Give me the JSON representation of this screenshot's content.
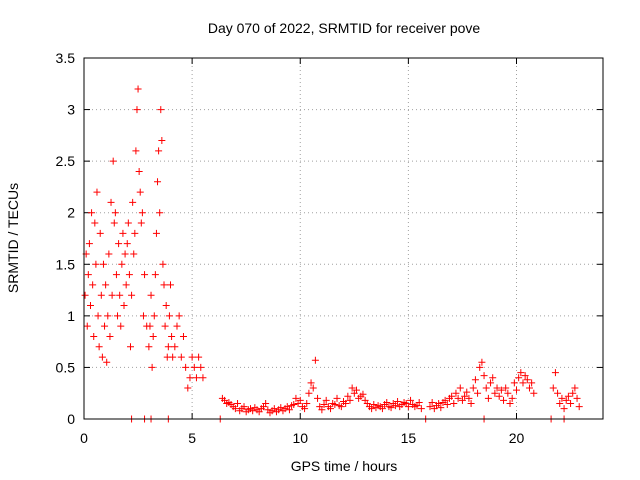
{
  "chart_data": {
    "type": "scatter",
    "title": "Day 070 of 2022, SRMTID for receiver pove",
    "xlabel": "GPS time / hours",
    "ylabel": "SRMTID / TECUs",
    "xlim": [
      0,
      24
    ],
    "ylim": [
      0,
      3.5
    ],
    "xticks": [
      0,
      5,
      10,
      15,
      20
    ],
    "xtick_labels": [
      "0",
      "5",
      "10",
      "15",
      "20"
    ],
    "yticks": [
      0,
      0.5,
      1,
      1.5,
      2,
      2.5,
      3,
      3.5
    ],
    "ytick_labels": [
      "0",
      "0.5",
      "1",
      "1.5",
      "2",
      "2.5",
      "3",
      "3.5"
    ],
    "grid": true,
    "marker": "plus",
    "series": [
      {
        "color": "#ff0000",
        "points": [
          [
            0.05,
            1.2
          ],
          [
            0.1,
            1.6
          ],
          [
            0.15,
            0.9
          ],
          [
            0.2,
            1.4
          ],
          [
            0.25,
            1.7
          ],
          [
            0.3,
            1.1
          ],
          [
            0.35,
            2.0
          ],
          [
            0.4,
            1.3
          ],
          [
            0.45,
            0.8
          ],
          [
            0.5,
            1.9
          ],
          [
            0.55,
            1.5
          ],
          [
            0.6,
            2.2
          ],
          [
            0.65,
            1.0
          ],
          [
            0.7,
            0.7
          ],
          [
            0.75,
            1.8
          ],
          [
            0.8,
            1.2
          ],
          [
            0.85,
            0.6
          ],
          [
            0.9,
            1.5
          ],
          [
            0.95,
            0.9
          ],
          [
            1.0,
            1.3
          ],
          [
            1.05,
            0.55
          ],
          [
            1.1,
            1.0
          ],
          [
            1.15,
            1.6
          ],
          [
            1.2,
            0.8
          ],
          [
            1.25,
            2.1
          ],
          [
            1.3,
            1.2
          ],
          [
            1.35,
            2.5
          ],
          [
            1.4,
            1.9
          ],
          [
            1.45,
            2.0
          ],
          [
            1.5,
            1.4
          ],
          [
            1.55,
            1.0
          ],
          [
            1.6,
            1.7
          ],
          [
            1.65,
            1.2
          ],
          [
            1.7,
            0.9
          ],
          [
            1.75,
            1.5
          ],
          [
            1.8,
            1.8
          ],
          [
            1.85,
            1.1
          ],
          [
            1.9,
            1.6
          ],
          [
            1.95,
            1.3
          ],
          [
            2.0,
            1.7
          ],
          [
            2.05,
            1.9
          ],
          [
            2.1,
            1.4
          ],
          [
            2.15,
            0.7
          ],
          [
            2.2,
            1.2
          ],
          [
            2.25,
            2.1
          ],
          [
            2.3,
            1.6
          ],
          [
            2.35,
            1.8
          ],
          [
            2.4,
            2.6
          ],
          [
            2.45,
            3.0
          ],
          [
            2.5,
            3.2
          ],
          [
            2.55,
            2.4
          ],
          [
            2.6,
            2.2
          ],
          [
            2.65,
            1.9
          ],
          [
            2.7,
            2.0
          ],
          [
            2.75,
            1.0
          ],
          [
            2.8,
            1.4
          ],
          [
            2.9,
            0.9
          ],
          [
            3.0,
            0.7
          ],
          [
            3.05,
            0.9
          ],
          [
            3.1,
            1.2
          ],
          [
            3.15,
            0.5
          ],
          [
            3.2,
            0.8
          ],
          [
            3.25,
            1.0
          ],
          [
            3.3,
            1.4
          ],
          [
            3.35,
            1.8
          ],
          [
            3.4,
            2.3
          ],
          [
            3.45,
            2.6
          ],
          [
            3.5,
            2.0
          ],
          [
            3.55,
            3.0
          ],
          [
            3.6,
            2.7
          ],
          [
            3.65,
            1.5
          ],
          [
            3.7,
            1.3
          ],
          [
            3.75,
            0.9
          ],
          [
            3.8,
            1.1
          ],
          [
            3.85,
            0.6
          ],
          [
            3.9,
            0.7
          ],
          [
            3.95,
            1.0
          ],
          [
            4.0,
            1.3
          ],
          [
            4.05,
            0.8
          ],
          [
            4.1,
            0.6
          ],
          [
            4.2,
            0.7
          ],
          [
            4.3,
            0.9
          ],
          [
            4.4,
            1.0
          ],
          [
            4.5,
            0.6
          ],
          [
            4.6,
            0.8
          ],
          [
            4.7,
            0.5
          ],
          [
            4.8,
            0.3
          ],
          [
            4.9,
            0.4
          ],
          [
            5.0,
            0.6
          ],
          [
            5.1,
            0.5
          ],
          [
            5.2,
            0.4
          ],
          [
            5.3,
            0.6
          ],
          [
            5.4,
            0.5
          ],
          [
            5.5,
            0.4
          ],
          [
            2.2,
            0.0
          ],
          [
            2.8,
            0.0
          ],
          [
            3.1,
            0.0
          ],
          [
            3.9,
            0.0
          ],
          [
            6.3,
            0.0
          ],
          [
            6.4,
            0.2
          ],
          [
            6.5,
            0.18
          ],
          [
            6.6,
            0.15
          ],
          [
            6.7,
            0.16
          ],
          [
            6.8,
            0.14
          ],
          [
            6.9,
            0.12
          ],
          [
            7.0,
            0.1
          ],
          [
            7.1,
            0.15
          ],
          [
            7.2,
            0.08
          ],
          [
            7.3,
            0.1
          ],
          [
            7.4,
            0.12
          ],
          [
            7.5,
            0.07
          ],
          [
            7.6,
            0.09
          ],
          [
            7.7,
            0.1
          ],
          [
            7.8,
            0.08
          ],
          [
            7.9,
            0.11
          ],
          [
            8.0,
            0.09
          ],
          [
            8.1,
            0.07
          ],
          [
            8.2,
            0.1
          ],
          [
            8.3,
            0.12
          ],
          [
            8.4,
            0.15
          ],
          [
            8.5,
            0.09
          ],
          [
            8.6,
            0.06
          ],
          [
            8.7,
            0.08
          ],
          [
            8.8,
            0.1
          ],
          [
            8.9,
            0.07
          ],
          [
            9.0,
            0.09
          ],
          [
            9.1,
            0.11
          ],
          [
            9.2,
            0.08
          ],
          [
            9.3,
            0.1
          ],
          [
            9.4,
            0.12
          ],
          [
            9.5,
            0.09
          ],
          [
            9.6,
            0.13
          ],
          [
            9.7,
            0.14
          ],
          [
            9.8,
            0.2
          ],
          [
            9.9,
            0.15
          ],
          [
            10.0,
            0.18
          ],
          [
            10.1,
            0.12
          ],
          [
            10.2,
            0.1
          ],
          [
            10.3,
            0.15
          ],
          [
            10.4,
            0.25
          ],
          [
            10.5,
            0.35
          ],
          [
            10.6,
            0.3
          ],
          [
            10.7,
            0.57
          ],
          [
            10.8,
            0.2
          ],
          [
            10.9,
            0.12
          ],
          [
            11.0,
            0.09
          ],
          [
            11.1,
            0.14
          ],
          [
            11.2,
            0.18
          ],
          [
            11.3,
            0.12
          ],
          [
            11.4,
            0.1
          ],
          [
            11.5,
            0.15
          ],
          [
            11.6,
            0.14
          ],
          [
            11.7,
            0.2
          ],
          [
            11.8,
            0.13
          ],
          [
            11.9,
            0.12
          ],
          [
            12.0,
            0.17
          ],
          [
            12.1,
            0.15
          ],
          [
            12.2,
            0.22
          ],
          [
            12.3,
            0.18
          ],
          [
            12.4,
            0.3
          ],
          [
            12.5,
            0.25
          ],
          [
            12.6,
            0.28
          ],
          [
            12.7,
            0.2
          ],
          [
            12.8,
            0.22
          ],
          [
            12.9,
            0.24
          ],
          [
            13.0,
            0.18
          ],
          [
            13.1,
            0.15
          ],
          [
            13.2,
            0.12
          ],
          [
            13.3,
            0.1
          ],
          [
            13.4,
            0.14
          ],
          [
            13.5,
            0.11
          ],
          [
            13.6,
            0.13
          ],
          [
            13.7,
            0.12
          ],
          [
            13.8,
            0.1
          ],
          [
            13.9,
            0.14
          ],
          [
            14.0,
            0.16
          ],
          [
            14.1,
            0.12
          ],
          [
            14.2,
            0.11
          ],
          [
            14.3,
            0.15
          ],
          [
            14.4,
            0.13
          ],
          [
            14.5,
            0.17
          ],
          [
            14.6,
            0.12
          ],
          [
            14.7,
            0.14
          ],
          [
            14.8,
            0.16
          ],
          [
            14.9,
            0.15
          ],
          [
            15.0,
            0.12
          ],
          [
            15.1,
            0.18
          ],
          [
            15.2,
            0.14
          ],
          [
            15.3,
            0.12
          ],
          [
            15.4,
            0.13
          ],
          [
            15.5,
            0.16
          ],
          [
            15.6,
            0.1
          ],
          [
            15.8,
            0.0
          ],
          [
            16.0,
            0.12
          ],
          [
            16.1,
            0.16
          ],
          [
            16.2,
            0.1
          ],
          [
            16.3,
            0.13
          ],
          [
            16.4,
            0.15
          ],
          [
            16.5,
            0.11
          ],
          [
            16.6,
            0.16
          ],
          [
            16.7,
            0.18
          ],
          [
            16.8,
            0.14
          ],
          [
            16.9,
            0.2
          ],
          [
            17.0,
            0.22
          ],
          [
            17.1,
            0.15
          ],
          [
            17.2,
            0.25
          ],
          [
            17.3,
            0.2
          ],
          [
            17.4,
            0.3
          ],
          [
            17.5,
            0.18
          ],
          [
            17.6,
            0.22
          ],
          [
            17.7,
            0.26
          ],
          [
            17.8,
            0.2
          ],
          [
            17.9,
            0.15
          ],
          [
            18.0,
            0.3
          ],
          [
            18.1,
            0.38
          ],
          [
            18.2,
            0.25
          ],
          [
            18.3,
            0.5
          ],
          [
            18.4,
            0.55
          ],
          [
            18.5,
            0.42
          ],
          [
            18.6,
            0.3
          ],
          [
            18.7,
            0.2
          ],
          [
            18.8,
            0.35
          ],
          [
            18.9,
            0.4
          ],
          [
            19.0,
            0.25
          ],
          [
            19.1,
            0.3
          ],
          [
            19.2,
            0.22
          ],
          [
            19.3,
            0.28
          ],
          [
            19.4,
            0.18
          ],
          [
            19.5,
            0.3
          ],
          [
            19.6,
            0.25
          ],
          [
            19.7,
            0.15
          ],
          [
            19.8,
            0.2
          ],
          [
            19.9,
            0.35
          ],
          [
            20.0,
            0.28
          ],
          [
            20.1,
            0.4
          ],
          [
            20.2,
            0.45
          ],
          [
            20.3,
            0.35
          ],
          [
            20.4,
            0.42
          ],
          [
            20.5,
            0.38
          ],
          [
            20.6,
            0.3
          ],
          [
            20.7,
            0.35
          ],
          [
            20.8,
            0.25
          ],
          [
            18.5,
            0.0
          ],
          [
            21.6,
            0.0
          ],
          [
            21.7,
            0.3
          ],
          [
            21.8,
            0.45
          ],
          [
            21.9,
            0.25
          ],
          [
            22.0,
            0.15
          ],
          [
            22.1,
            0.2
          ],
          [
            22.2,
            0.1
          ],
          [
            22.3,
            0.18
          ],
          [
            22.4,
            0.22
          ],
          [
            22.5,
            0.15
          ],
          [
            22.6,
            0.25
          ],
          [
            22.7,
            0.3
          ],
          [
            22.8,
            0.2
          ],
          [
            22.9,
            0.12
          ],
          [
            22.2,
            0.0
          ]
        ]
      }
    ]
  }
}
